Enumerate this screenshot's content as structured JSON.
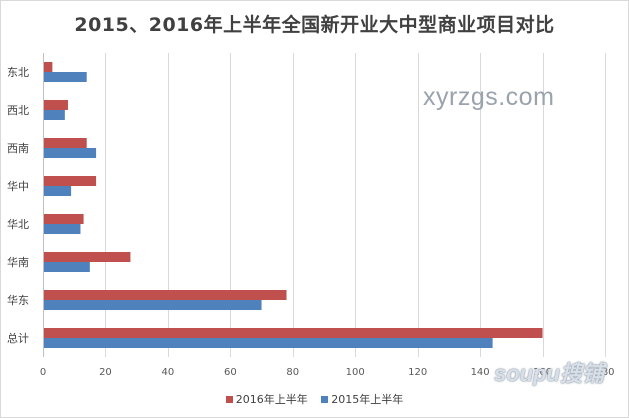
{
  "chart_data": {
    "type": "bar",
    "orientation": "horizontal",
    "title": "2015、2016年上半年全国新开业大中型商业项目对比",
    "categories": [
      "东北",
      "西北",
      "西南",
      "华中",
      "华北",
      "华南",
      "华东",
      "总计"
    ],
    "series": [
      {
        "name": "2016年上半年",
        "color": "#c0504d",
        "values": [
          3,
          8,
          14,
          17,
          13,
          28,
          78,
          160
        ]
      },
      {
        "name": "2015年上半年",
        "color": "#4f81bd",
        "values": [
          14,
          7,
          17,
          9,
          12,
          15,
          70,
          144
        ]
      }
    ],
    "xlim": [
      0,
      180
    ],
    "xticks": [
      0,
      20,
      40,
      60,
      80,
      100,
      120,
      140,
      160,
      180
    ],
    "grid": true,
    "legend_position": "bottom"
  },
  "watermark": {
    "text": "xyrzgs.com"
  },
  "logo": {
    "text": "soupu搜铺"
  }
}
